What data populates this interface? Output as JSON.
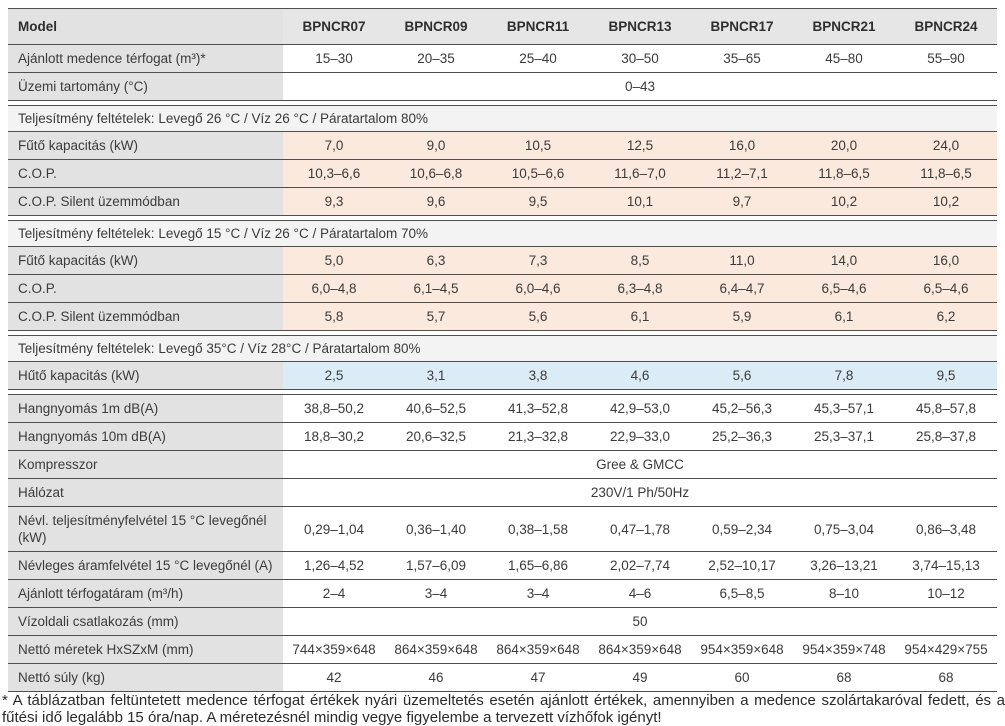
{
  "colors": {
    "border": "#4f4f4f",
    "label_bg": "#e2e2e2",
    "header_bg": "#e6e6e6",
    "section_bg": "#f3f3f3",
    "peach": "#fce9dd",
    "blue": "#dcecf7"
  },
  "table": {
    "header": {
      "label": "Model",
      "columns": [
        "BPNCR07",
        "BPNCR09",
        "BPNCR11",
        "BPNCR13",
        "BPNCR17",
        "BPNCR21",
        "BPNCR24"
      ]
    },
    "rows": [
      {
        "type": "data",
        "label": "Ajánlott medence térfogat (m³)*",
        "bg": "white",
        "values": [
          "15–30",
          "20–35",
          "25–40",
          "30–50",
          "35–65",
          "45–80",
          "55–90"
        ]
      },
      {
        "type": "merged",
        "label": "Üzemi tartomány (°C)",
        "value": "0–43"
      },
      {
        "type": "gap"
      },
      {
        "type": "section",
        "label": "Teljesítmény feltételek: Levegő 26 °C / Víz 26 °C / Páratartalom 80%"
      },
      {
        "type": "data",
        "label": "Fűtő kapacitás (kW)",
        "bg": "peach",
        "values": [
          "7,0",
          "9,0",
          "10,5",
          "12,5",
          "16,0",
          "20,0",
          "24,0"
        ]
      },
      {
        "type": "data",
        "label": "C.O.P.",
        "bg": "peach",
        "values": [
          "10,3–6,6",
          "10,6–6,8",
          "10,5–6,6",
          "11,6–7,0",
          "11,2–7,1",
          "11,8–6,5",
          "11,8–6,5"
        ]
      },
      {
        "type": "data",
        "label": "C.O.P. Silent üzemmódban",
        "bg": "peach",
        "values": [
          "9,3",
          "9,6",
          "9,5",
          "10,1",
          "9,7",
          "10,2",
          "10,2"
        ]
      },
      {
        "type": "gap"
      },
      {
        "type": "section",
        "label": "Teljesítmény feltételek: Levegő 15 °C / Víz 26 °C / Páratartalom 70%"
      },
      {
        "type": "data",
        "label": "Fűtő kapacitás (kW)",
        "bg": "peach",
        "values": [
          "5,0",
          "6,3",
          "7,3",
          "8,5",
          "11,0",
          "14,0",
          "16,0"
        ]
      },
      {
        "type": "data",
        "label": "C.O.P.",
        "bg": "peach",
        "values": [
          "6,0–4,8",
          "6,1–4,5",
          "6,0–4,6",
          "6,3–4,8",
          "6,4–4,7",
          "6,5–4,6",
          "6,5–4,6"
        ]
      },
      {
        "type": "data",
        "label": "C.O.P. Silent üzemmódban",
        "bg": "peach",
        "values": [
          "5,8",
          "5,7",
          "5,6",
          "6,1",
          "5,9",
          "6,1",
          "6,2"
        ]
      },
      {
        "type": "gap"
      },
      {
        "type": "section",
        "label": "Teljesítmény feltételek: Levegő 35°C / Víz 28°C / Páratartalom 80%"
      },
      {
        "type": "data",
        "label": "Hűtő kapacitás (kW)",
        "bg": "blue",
        "values": [
          "2,5",
          "3,1",
          "3,8",
          "4,6",
          "5,6",
          "7,8",
          "9,5"
        ]
      },
      {
        "type": "gap"
      },
      {
        "type": "data",
        "label": "Hangnyomás 1m dB(A)",
        "bg": "white",
        "values": [
          "38,8–50,2",
          "40,6–52,5",
          "41,3–52,8",
          "42,9–53,0",
          "45,2–56,3",
          "45,3–57,1",
          "45,8–57,8"
        ]
      },
      {
        "type": "data",
        "label": "Hangnyomás 10m dB(A)",
        "bg": "white",
        "values": [
          "18,8–30,2",
          "20,6–32,5",
          "21,3–32,8",
          "22,9–33,0",
          "25,2–36,3",
          "25,3–37,1",
          "25,8–37,8"
        ]
      },
      {
        "type": "merged",
        "label": "Kompresszor",
        "value": "Gree & GMCC"
      },
      {
        "type": "merged",
        "label": "Hálózat",
        "value": "230V/1 Ph/50Hz"
      },
      {
        "type": "data",
        "label": "Névl. teljesítményfelvétel 15 °C levegőnél (kW)",
        "bg": "white",
        "values": [
          "0,29–1,04",
          "0,36–1,40",
          "0,38–1,58",
          "0,47–1,78",
          "0,59–2,34",
          "0,75–3,04",
          "0,86–3,48"
        ]
      },
      {
        "type": "data",
        "label": "Névleges áramfelvétel 15 °C levegőnél (A)",
        "bg": "white",
        "values": [
          "1,26–4,52",
          "1,57–6,09",
          "1,65–6,86",
          "2,02–7,74",
          "2,52–10,17",
          "3,26–13,21",
          "3,74–15,13"
        ]
      },
      {
        "type": "data",
        "label": "Ajánlott térfogatáram (m³/h)",
        "bg": "white",
        "values": [
          "2–4",
          "3–4",
          "3–4",
          "4–6",
          "6,5–8,5",
          "8–10",
          "10–12"
        ]
      },
      {
        "type": "merged",
        "label": "Vízoldali csatlakozás (mm)",
        "value": "50"
      },
      {
        "type": "data",
        "label": "Nettó méretek HxSZxM (mm)",
        "bg": "white",
        "values": [
          "744×359×648",
          "864×359×648",
          "864×359×648",
          "864×359×648",
          "954×359×648",
          "954×359×748",
          "954×429×755"
        ]
      },
      {
        "type": "data",
        "label": "Nettó súly (kg)",
        "bg": "white",
        "values": [
          "42",
          "46",
          "47",
          "49",
          "60",
          "68",
          "68"
        ]
      }
    ]
  },
  "footnote": "* A táblázatban feltüntetett medence térfogat értékek nyári üzemeltetés esetén ajánlott értékek, amennyiben a medence szolártakaróval fedett, és a fűtési idő legalább 15 óra/nap. A méretezésnél mindig vegye figyelembe a tervezett vízhőfok igényt!"
}
